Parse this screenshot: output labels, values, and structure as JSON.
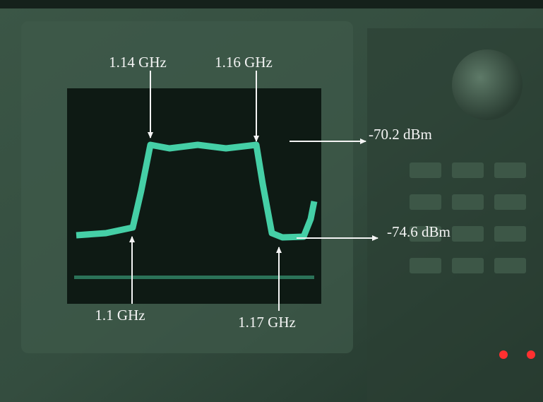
{
  "annotations": [
    "1.14 GHz",
    "1.16 GHz",
    "-70.2 dBm",
    "-74.6 dBm",
    "1.1 GHz",
    "1.17 GHz"
  ]
}
